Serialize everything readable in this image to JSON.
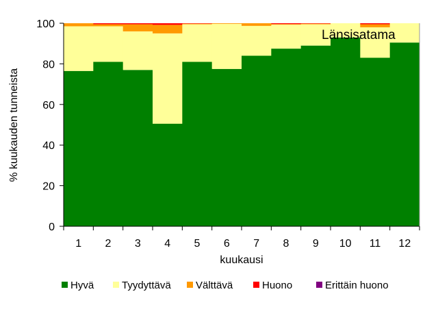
{
  "chart_data": {
    "type": "bar",
    "stacked": true,
    "title": "",
    "annotation": "Länsisatama",
    "xlabel": "kuukausi",
    "ylabel": "% kuukauden tunneista",
    "ylim": [
      0,
      100
    ],
    "yticks": [
      0,
      20,
      40,
      60,
      80,
      100
    ],
    "categories": [
      "1",
      "2",
      "3",
      "4",
      "5",
      "6",
      "7",
      "8",
      "9",
      "10",
      "11",
      "12"
    ],
    "series": [
      {
        "name": "Hyvä",
        "color": "#008000",
        "values": [
          76.5,
          81,
          77,
          50.5,
          81,
          77.5,
          84,
          87.5,
          89,
          93,
          83,
          90.5
        ]
      },
      {
        "name": "Tyydyttävä",
        "color": "#FFFF99",
        "values": [
          22,
          17.5,
          19,
          44.5,
          18.5,
          22.2,
          14.7,
          11.8,
          10.5,
          7,
          15,
          9.5
        ]
      },
      {
        "name": "Välttävä",
        "color": "#FF9900",
        "values": [
          1.5,
          1,
          3.5,
          4.2,
          0.3,
          0.3,
          1.3,
          0.3,
          0.3,
          0,
          1.5,
          0
        ]
      },
      {
        "name": "Huono",
        "color": "#FF0000",
        "values": [
          0,
          0.5,
          0.5,
          0.8,
          0.2,
          0,
          0,
          0.4,
          0.2,
          0,
          0.5,
          0
        ]
      },
      {
        "name": "Erittäin huono",
        "color": "#800080",
        "values": [
          0,
          0,
          0,
          0,
          0,
          0,
          0,
          0,
          0,
          0,
          0,
          0
        ]
      }
    ],
    "legend_position": "bottom",
    "grid": false
  }
}
